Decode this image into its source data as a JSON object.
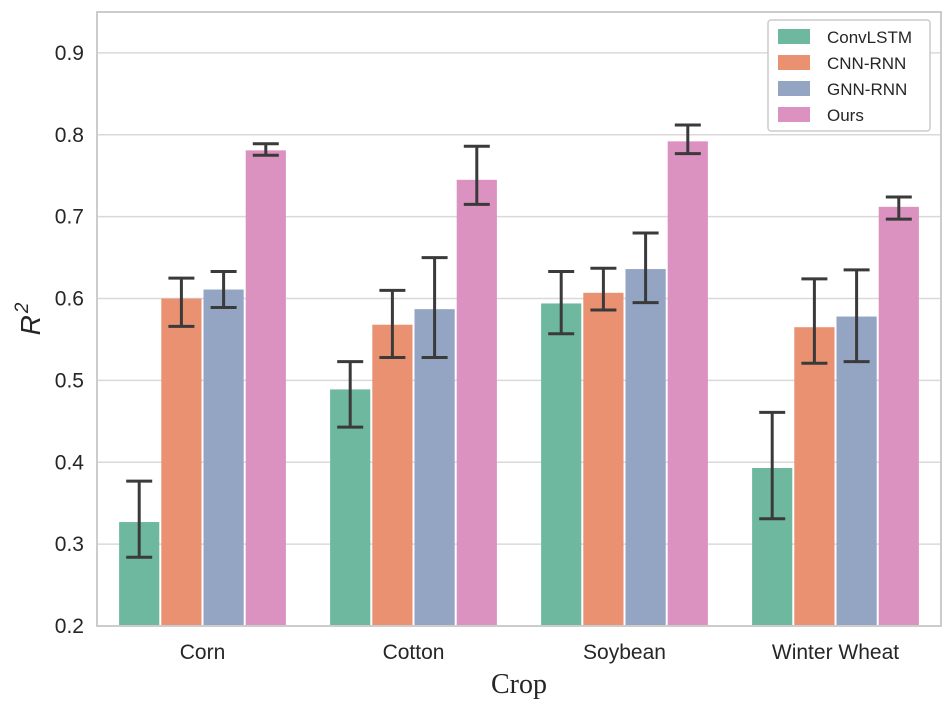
{
  "chart_data": {
    "type": "bar",
    "title": "",
    "xlabel": "Crop",
    "ylabel": "R",
    "ylabel_superscript": "2",
    "ylim": [
      0.2,
      0.95
    ],
    "yticks": [
      "0.2",
      "0.3",
      "0.4",
      "0.5",
      "0.6",
      "0.7",
      "0.8",
      "0.9"
    ],
    "categories": [
      "Corn",
      "Cotton",
      "Soybean",
      "Winter Wheat"
    ],
    "grid": true,
    "legend_position": "top-right",
    "series": [
      {
        "name": "ConvLSTM",
        "color": "#6fb8a0",
        "values": [
          0.327,
          0.489,
          0.594,
          0.393
        ],
        "err_low": [
          0.284,
          0.443,
          0.557,
          0.331
        ],
        "err_high": [
          0.377,
          0.523,
          0.633,
          0.461
        ]
      },
      {
        "name": "CNN-RNN",
        "color": "#ea9172",
        "values": [
          0.6,
          0.568,
          0.607,
          0.565
        ],
        "err_low": [
          0.566,
          0.528,
          0.586,
          0.521
        ],
        "err_high": [
          0.625,
          0.61,
          0.637,
          0.624
        ]
      },
      {
        "name": "GNN-RNN",
        "color": "#94a4c3",
        "values": [
          0.611,
          0.587,
          0.636,
          0.578
        ],
        "err_low": [
          0.589,
          0.528,
          0.595,
          0.523
        ],
        "err_high": [
          0.633,
          0.65,
          0.68,
          0.635
        ]
      },
      {
        "name": "Ours",
        "color": "#dc92c0",
        "values": [
          0.781,
          0.745,
          0.792,
          0.712
        ],
        "err_low": [
          0.775,
          0.715,
          0.777,
          0.697
        ],
        "err_high": [
          0.789,
          0.786,
          0.812,
          0.724
        ]
      }
    ]
  }
}
